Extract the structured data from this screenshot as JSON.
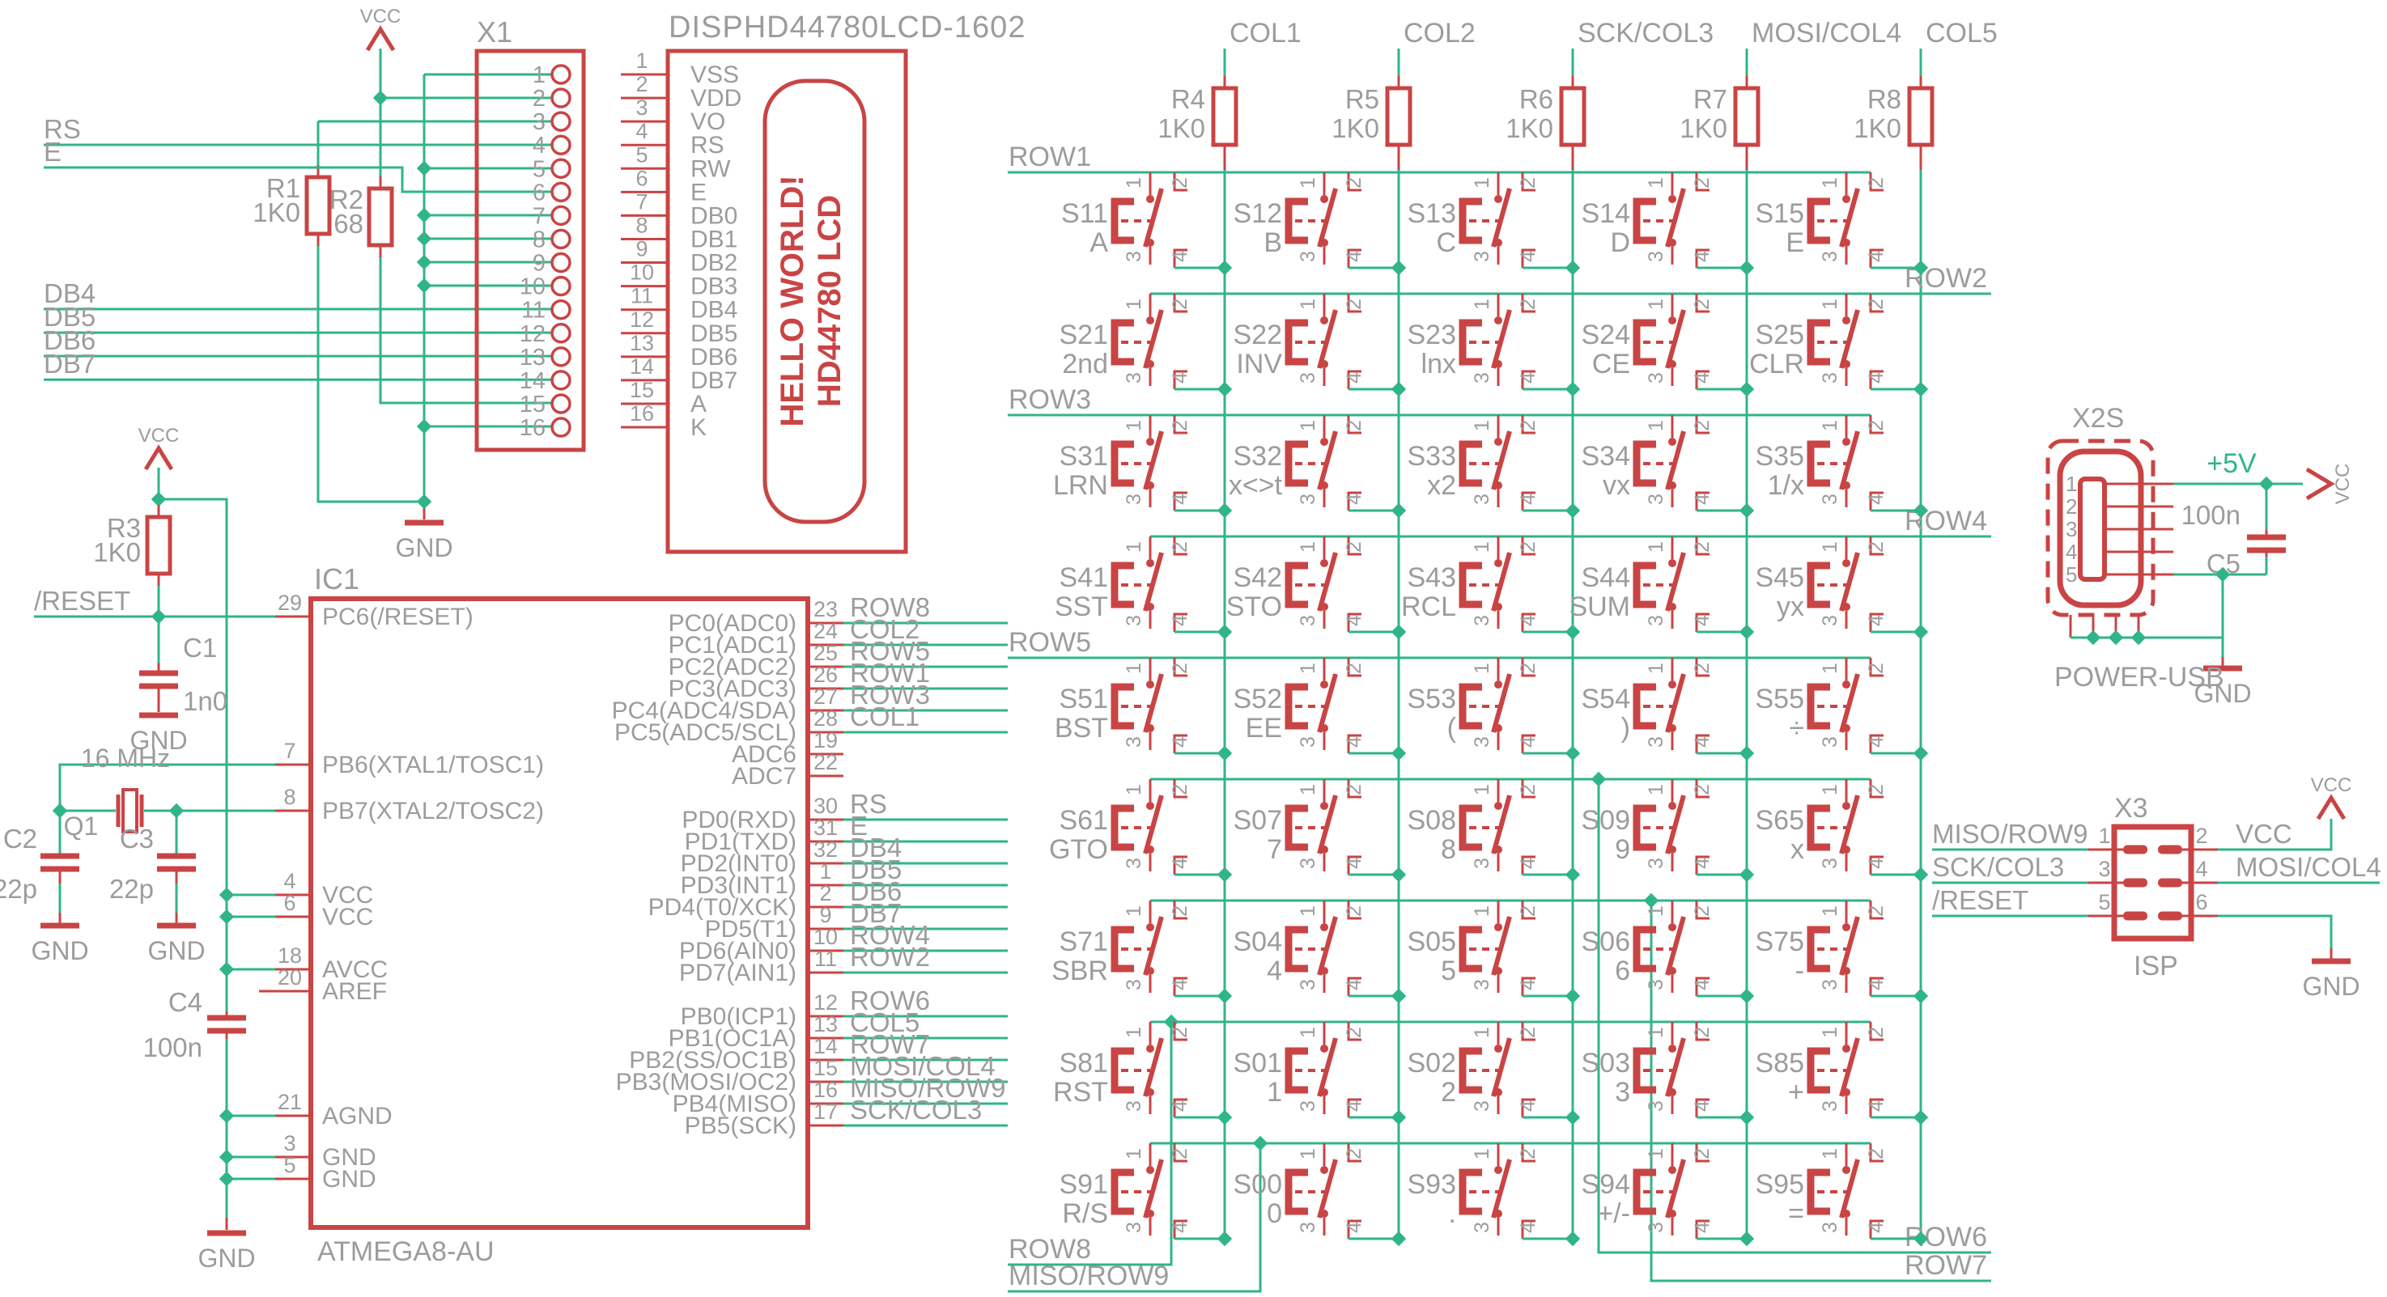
{
  "title": "DISPHD44780LCD-1602",
  "colors": {
    "red": "#c94444",
    "green": "#2fb588",
    "gray": "#9c9c9c"
  },
  "power": {
    "vcc": "VCC",
    "gnd": "GND",
    "p5v": "+5V"
  },
  "x1": {
    "ref": "X1",
    "pin_numbers": [
      "1",
      "2",
      "3",
      "4",
      "5",
      "6",
      "7",
      "8",
      "9",
      "10",
      "11",
      "12",
      "13",
      "14",
      "15",
      "16"
    ]
  },
  "lcd": {
    "title": "DISPHD44780LCD-1602",
    "screen_line1": "HELLO WORLD!",
    "screen_line2": "HD44780 LCD",
    "pins": [
      "VSS",
      "VDD",
      "VO",
      "RS",
      "RW",
      "E",
      "DB0",
      "DB1",
      "DB2",
      "DB3",
      "DB4",
      "DB5",
      "DB6",
      "DB7",
      "A",
      "K"
    ]
  },
  "left_nets": {
    "rs": "RS",
    "e": "E",
    "db": [
      "DB4",
      "DB5",
      "DB6",
      "DB7"
    ],
    "reset": "/RESET"
  },
  "resistors": {
    "r1": {
      "ref": "R1",
      "value": "1K0"
    },
    "r2": {
      "ref": "R2",
      "value": "68"
    },
    "r3": {
      "ref": "R3",
      "value": "1K0"
    }
  },
  "capacitors": {
    "c1": {
      "ref": "C1",
      "value": "1n0"
    },
    "c2": {
      "ref": "C2",
      "value": "22p"
    },
    "c3": {
      "ref": "C3",
      "value": "22p"
    },
    "c4": {
      "ref": "C4",
      "value": "100n"
    },
    "c5": {
      "ref": "C5",
      "value": "100n"
    }
  },
  "crystal": {
    "ref": "Q1",
    "value": "16 MHz"
  },
  "ic1": {
    "ref": "IC1",
    "value": "ATMEGA8-AU",
    "left_pins": [
      {
        "n": "29",
        "name": "PC6(/RESET)"
      },
      {
        "n": "7",
        "name": "PB6(XTAL1/TOSC1)"
      },
      {
        "n": "8",
        "name": "PB7(XTAL2/TOSC2)"
      },
      {
        "n": "4",
        "name": "VCC"
      },
      {
        "n": "6",
        "name": "VCC"
      },
      {
        "n": "18",
        "name": "AVCC"
      },
      {
        "n": "20",
        "name": "AREF"
      },
      {
        "n": "21",
        "name": "AGND"
      },
      {
        "n": "3",
        "name": "GND"
      },
      {
        "n": "5",
        "name": "GND"
      }
    ],
    "right_pins": [
      {
        "n": "23",
        "name": "PC0(ADC0)",
        "net": "ROW8"
      },
      {
        "n": "24",
        "name": "PC1(ADC1)",
        "net": "COL2"
      },
      {
        "n": "25",
        "name": "PC2(ADC2)",
        "net": "ROW5"
      },
      {
        "n": "26",
        "name": "PC3(ADC3)",
        "net": "ROW1"
      },
      {
        "n": "27",
        "name": "PC4(ADC4/SDA)",
        "net": "ROW3"
      },
      {
        "n": "28",
        "name": "PC5(ADC5/SCL)",
        "net": "COL1"
      },
      {
        "n": "19",
        "name": "ADC6",
        "net": ""
      },
      {
        "n": "22",
        "name": "ADC7",
        "net": ""
      },
      {
        "n": "30",
        "name": "PD0(RXD)",
        "net": "RS"
      },
      {
        "n": "31",
        "name": "PD1(TXD)",
        "net": "E"
      },
      {
        "n": "32",
        "name": "PD2(INT0)",
        "net": "DB4"
      },
      {
        "n": "1",
        "name": "PD3(INT1)",
        "net": "DB5"
      },
      {
        "n": "2",
        "name": "PD4(T0/XCK)",
        "net": "DB6"
      },
      {
        "n": "9",
        "name": "PD5(T1)",
        "net": "DB7"
      },
      {
        "n": "10",
        "name": "PD6(AIN0)",
        "net": "ROW4"
      },
      {
        "n": "11",
        "name": "PD7(AIN1)",
        "net": "ROW2"
      },
      {
        "n": "12",
        "name": "PB0(ICP1)",
        "net": "ROW6"
      },
      {
        "n": "13",
        "name": "PB1(OC1A)",
        "net": "COL5"
      },
      {
        "n": "14",
        "name": "PB2(SS/OC1B)",
        "net": "ROW7"
      },
      {
        "n": "15",
        "name": "PB3(MOSI/OC2)",
        "net": "MOSI/COL4"
      },
      {
        "n": "16",
        "name": "PB4(MISO)",
        "net": "MISO/ROW9"
      },
      {
        "n": "17",
        "name": "PB5(SCK)",
        "net": "SCK/COL3"
      }
    ]
  },
  "keypad": {
    "columns": [
      {
        "label": "COL1",
        "ref": "R4",
        "value": "1K0"
      },
      {
        "label": "COL2",
        "ref": "R5",
        "value": "1K0"
      },
      {
        "label": "SCK/COL3",
        "ref": "R6",
        "value": "1K0"
      },
      {
        "label": "MOSI/COL4",
        "ref": "R7",
        "value": "1K0"
      },
      {
        "label": "COL5",
        "ref": "R8",
        "value": "1K0"
      }
    ],
    "row_labels_left": {
      "0": "ROW1",
      "2": "ROW3",
      "4": "ROW5"
    },
    "row_labels_right": {
      "1": "ROW2",
      "3": "ROW4"
    },
    "risers": [
      {
        "row": 5,
        "label": "ROW6",
        "side": "right"
      },
      {
        "row": 6,
        "label": "ROW7",
        "side": "right"
      },
      {
        "row": 7,
        "label": "ROW8",
        "side": "left"
      },
      {
        "row": 8,
        "label": "MISO/ROW9",
        "side": "left"
      }
    ],
    "switch_pin_numbers": [
      "1",
      "2",
      "3",
      "4"
    ],
    "switches": [
      [
        {
          "ref": "S11",
          "key": "A"
        },
        {
          "ref": "S12",
          "key": "B"
        },
        {
          "ref": "S13",
          "key": "C"
        },
        {
          "ref": "S14",
          "key": "D"
        },
        {
          "ref": "S15",
          "key": "E"
        }
      ],
      [
        {
          "ref": "S21",
          "key": "2nd"
        },
        {
          "ref": "S22",
          "key": "INV"
        },
        {
          "ref": "S23",
          "key": "lnx"
        },
        {
          "ref": "S24",
          "key": "CE"
        },
        {
          "ref": "S25",
          "key": "CLR"
        }
      ],
      [
        {
          "ref": "S31",
          "key": "LRN"
        },
        {
          "ref": "S32",
          "key": "x<>t"
        },
        {
          "ref": "S33",
          "key": "x2"
        },
        {
          "ref": "S34",
          "key": "vx"
        },
        {
          "ref": "S35",
          "key": "1/x"
        }
      ],
      [
        {
          "ref": "S41",
          "key": "SST"
        },
        {
          "ref": "S42",
          "key": "STO"
        },
        {
          "ref": "S43",
          "key": "RCL"
        },
        {
          "ref": "S44",
          "key": "SUM"
        },
        {
          "ref": "S45",
          "key": "yx"
        }
      ],
      [
        {
          "ref": "S51",
          "key": "BST"
        },
        {
          "ref": "S52",
          "key": "EE"
        },
        {
          "ref": "S53",
          "key": "("
        },
        {
          "ref": "S54",
          "key": ")"
        },
        {
          "ref": "S55",
          "key": "÷"
        }
      ],
      [
        {
          "ref": "S61",
          "key": "GTO"
        },
        {
          "ref": "S07",
          "key": "7"
        },
        {
          "ref": "S08",
          "key": "8"
        },
        {
          "ref": "S09",
          "key": "9"
        },
        {
          "ref": "S65",
          "key": "x"
        }
      ],
      [
        {
          "ref": "S71",
          "key": "SBR"
        },
        {
          "ref": "S04",
          "key": "4"
        },
        {
          "ref": "S05",
          "key": "5"
        },
        {
          "ref": "S06",
          "key": "6"
        },
        {
          "ref": "S75",
          "key": "-"
        }
      ],
      [
        {
          "ref": "S81",
          "key": "RST"
        },
        {
          "ref": "S01",
          "key": "1"
        },
        {
          "ref": "S02",
          "key": "2"
        },
        {
          "ref": "S03",
          "key": "3"
        },
        {
          "ref": "S85",
          "key": "+"
        }
      ],
      [
        {
          "ref": "S91",
          "key": "R/S"
        },
        {
          "ref": "S00",
          "key": "0"
        },
        {
          "ref": "S93",
          "key": "."
        },
        {
          "ref": "S94",
          "key": "+/-"
        },
        {
          "ref": "S95",
          "key": "="
        }
      ]
    ]
  },
  "usb": {
    "ref": "X2S",
    "name": "POWER-USB",
    "pin_numbers": [
      "1",
      "2",
      "3",
      "4",
      "5"
    ],
    "p5v": "+5V",
    "cap_ref": "C5",
    "cap_value": "100n"
  },
  "isp": {
    "ref": "X3",
    "name": "ISP",
    "left_pins": [
      {
        "n": "1",
        "net": "MISO/ROW9"
      },
      {
        "n": "3",
        "net": "SCK/COL3"
      },
      {
        "n": "5",
        "net": "/RESET"
      }
    ],
    "right_pins": [
      {
        "n": "2",
        "net": "VCC"
      },
      {
        "n": "4",
        "net": "MOSI/COL4"
      },
      {
        "n": "6",
        "net": ""
      }
    ]
  }
}
